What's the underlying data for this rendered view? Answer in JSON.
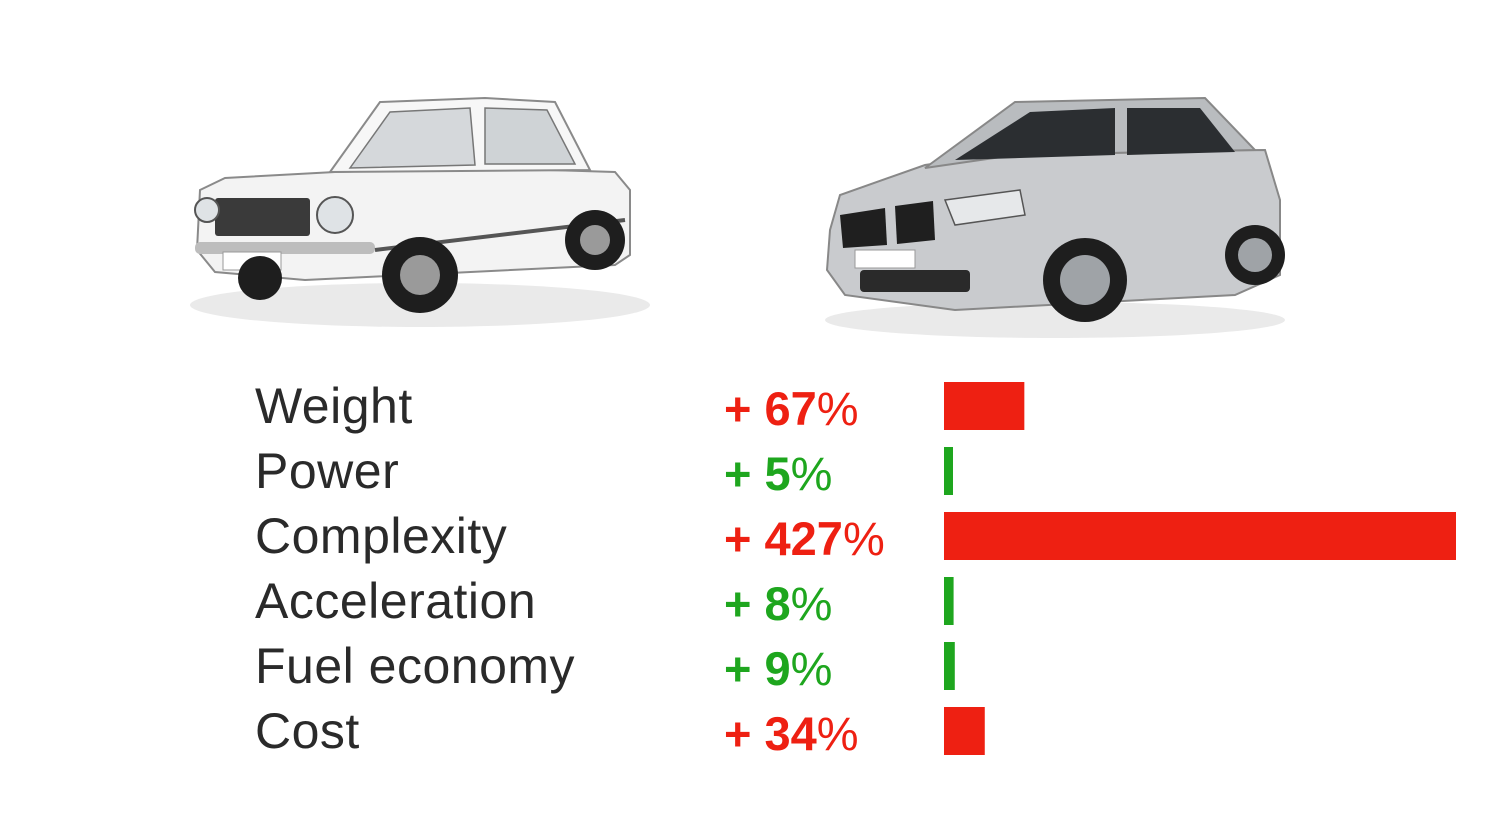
{
  "chart_data": {
    "type": "bar",
    "orientation": "horizontal",
    "categories": [
      "Weight",
      "Power",
      "Complexity",
      "Acceleration",
      "Fuel economy",
      "Cost"
    ],
    "values": [
      67,
      5,
      427,
      8,
      9,
      34
    ],
    "value_labels": [
      {
        "sign": "+",
        "number": "67",
        "unit": "%"
      },
      {
        "sign": "+",
        "number": "5",
        "unit": "%"
      },
      {
        "sign": "+",
        "number": "427",
        "unit": "%"
      },
      {
        "sign": "+",
        "number": "8",
        "unit": "%"
      },
      {
        "sign": "+",
        "number": "9",
        "unit": "%"
      },
      {
        "sign": "+",
        "number": "34",
        "unit": "%"
      }
    ],
    "status": [
      "bad",
      "good",
      "bad",
      "good",
      "good",
      "bad"
    ],
    "xlim": [
      0,
      427
    ],
    "grid": false,
    "legend": "none",
    "title": "",
    "xlabel": "",
    "ylabel": ""
  },
  "colors": {
    "bad": "#ee2012",
    "good": "#1ea61e",
    "label": "#2a2a2a"
  },
  "images": {
    "old_car": "vintage-white-sedan",
    "new_car": "modern-silver-hatchback"
  }
}
